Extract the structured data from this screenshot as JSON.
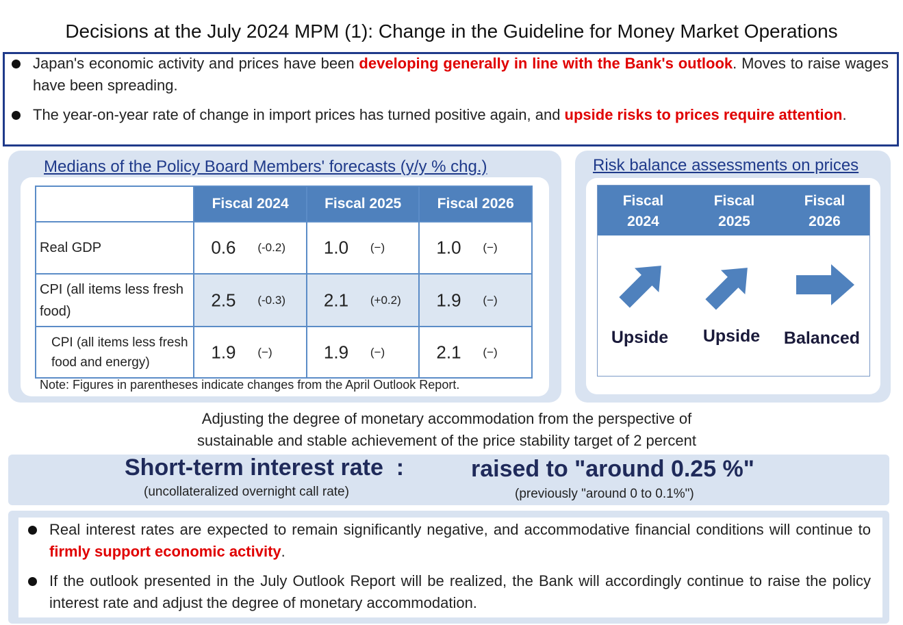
{
  "title": "Decisions at the July 2024 MPM (1): Change in the Guideline for Money Market Operations",
  "top_bullets": [
    {
      "pre": "Japan's economic activity and prices have been ",
      "em": "developing generally in line with the Bank's outlook",
      "post": ". Moves to raise wages have been spreading."
    },
    {
      "pre": "The year-on-year rate of change in import prices has turned positive again, and ",
      "em": "upside risks to prices require attention",
      "post": "."
    }
  ],
  "forecast": {
    "title": "Medians of the Policy Board Members' forecasts (y/y % chg.)",
    "headers": [
      "Fiscal 2024",
      "Fiscal 2025",
      "Fiscal 2026"
    ],
    "rows": [
      {
        "label": "Real GDP",
        "cells": [
          {
            "v": "0.6",
            "c": "(-0.2)"
          },
          {
            "v": "1.0",
            "c": "(−)"
          },
          {
            "v": "1.0",
            "c": "(−)"
          }
        ]
      },
      {
        "label": "CPI (all items less fresh food)",
        "cells": [
          {
            "v": "2.5",
            "c": "(-0.3)"
          },
          {
            "v": "2.1",
            "c": "(+0.2)"
          },
          {
            "v": "1.9",
            "c": "(−)"
          }
        ]
      },
      {
        "label": "CPI (all items less fresh food and energy)",
        "cells": [
          {
            "v": "1.9",
            "c": "(−)"
          },
          {
            "v": "1.9",
            "c": "(−)"
          },
          {
            "v": "2.1",
            "c": "(−)"
          }
        ]
      }
    ],
    "note": "Note: Figures in parentheses indicate changes from the April Outlook Report."
  },
  "risk": {
    "title": "Risk balance assessments on prices",
    "cols": [
      {
        "line1": "Fiscal",
        "line2": "2024",
        "label": "Upside",
        "arrow": "arrow-up-right-icon"
      },
      {
        "line1": "Fiscal",
        "line2": "2025",
        "label": "Upside",
        "arrow": "arrow-up-right-icon"
      },
      {
        "line1": "Fiscal",
        "line2": "2026",
        "label": "Balanced",
        "arrow": "arrow-right-icon"
      }
    ],
    "arrow_color": "#4f81bd"
  },
  "adjust": {
    "line1": "Adjusting the degree of monetary accommodation from the perspective of",
    "line2": "sustainable and stable achievement of the price stability target of 2 percent"
  },
  "rate": {
    "label": "Short-term interest rate  :",
    "sub": "(uncollateralized overnight call rate)",
    "value": "raised to \"around 0.25 %\"",
    "prev": "(previously \"around 0 to 0.1%\")"
  },
  "bottom_bullets": [
    {
      "pre": "Real interest rates are expected to remain significantly negative, and accommodative financial conditions will continue to ",
      "em": "firmly support economic activity",
      "post": "."
    },
    {
      "pre": "If the outlook presented in the July Outlook Report will be realized, the Bank will accordingly continue to raise the policy interest rate and adjust the degree of monetary accommodation.",
      "em": "",
      "post": ""
    }
  ],
  "colors": {
    "navy": "#1f3a8a",
    "header_blue": "#4f81bd",
    "panel_bg": "#d9e3f1",
    "emphasis_red": "#e00000"
  }
}
